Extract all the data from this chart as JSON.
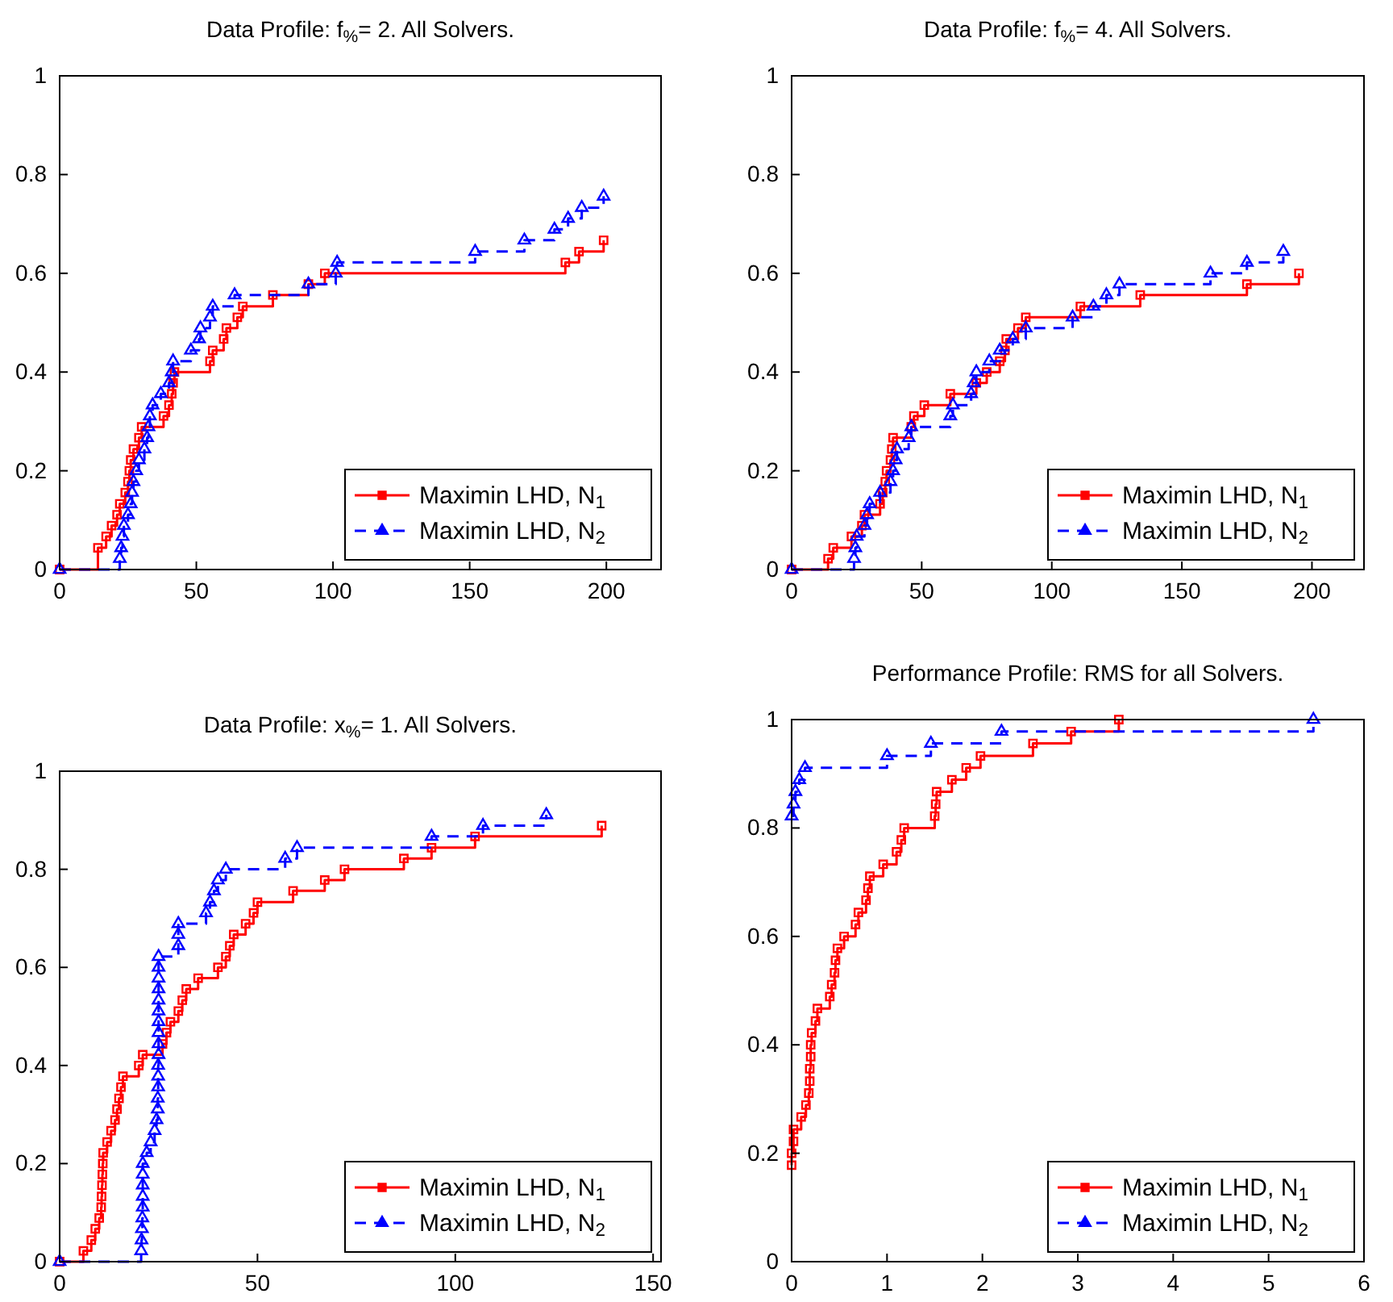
{
  "chart_data": [
    {
      "type": "step",
      "title": "Data Profile: f$_{%}$= 2.  All Solvers.",
      "xlim": [
        0,
        220
      ],
      "xticks": [
        0,
        50,
        100,
        150,
        200
      ],
      "ylim": [
        0,
        1
      ],
      "yticks": [
        0,
        0.2,
        0.4,
        0.6,
        0.8,
        1
      ],
      "grid": false,
      "legend": "bottom right",
      "series": [
        {
          "name": "Maximin LHD, N$_{1}$",
          "color": "#ff0000",
          "marker": "square",
          "line_style": "solid",
          "x": [
            0,
            14,
            17,
            19,
            21,
            22,
            24,
            25,
            25.5,
            26,
            27,
            29,
            30,
            38,
            40,
            41,
            41.5,
            42,
            55,
            56,
            60,
            61,
            65,
            67,
            78,
            91,
            97,
            185,
            190,
            199
          ],
          "values": [
            0,
            0.044,
            0.067,
            0.089,
            0.111,
            0.133,
            0.156,
            0.178,
            0.2,
            0.222,
            0.244,
            0.267,
            0.289,
            0.311,
            0.333,
            0.356,
            0.378,
            0.4,
            0.422,
            0.444,
            0.467,
            0.489,
            0.511,
            0.533,
            0.556,
            0.578,
            0.6,
            0.622,
            0.644,
            0.667
          ]
        },
        {
          "name": "Maximin LHD, N$_{2}$",
          "color": "#0000ff",
          "marker": "triangle",
          "line_style": "dashed",
          "x": [
            0,
            22,
            22.5,
            23,
            23.5,
            25,
            26,
            26.5,
            27,
            28,
            29,
            31,
            32,
            32.5,
            33,
            34,
            37,
            40,
            41,
            41.5,
            48,
            51,
            51.5,
            55,
            56,
            64,
            91,
            101,
            101.5,
            152,
            170,
            181,
            186,
            191,
            199
          ],
          "values": [
            0,
            0.022,
            0.044,
            0.067,
            0.089,
            0.111,
            0.133,
            0.156,
            0.178,
            0.2,
            0.222,
            0.244,
            0.267,
            0.289,
            0.311,
            0.333,
            0.356,
            0.378,
            0.4,
            0.422,
            0.444,
            0.467,
            0.489,
            0.511,
            0.533,
            0.556,
            0.578,
            0.6,
            0.622,
            0.644,
            0.667,
            0.689,
            0.711,
            0.733,
            0.756
          ]
        }
      ]
    },
    {
      "type": "step",
      "title": "Data Profile: f$_{%}$= 4.  All Solvers.",
      "xlim": [
        0,
        220
      ],
      "xticks": [
        0,
        50,
        100,
        150,
        200
      ],
      "ylim": [
        0,
        1
      ],
      "yticks": [
        0,
        0.2,
        0.4,
        0.6,
        0.8,
        1
      ],
      "grid": false,
      "legend": "bottom right",
      "series": [
        {
          "name": "Maximin LHD, N$_{1}$",
          "color": "#ff0000",
          "marker": "square",
          "line_style": "solid",
          "x": [
            0,
            14,
            16,
            23,
            27,
            28,
            34,
            35,
            36,
            36.5,
            38,
            38.5,
            39,
            46,
            47,
            51,
            61,
            71,
            75,
            80,
            82,
            82.5,
            87,
            90,
            111,
            134,
            175,
            195
          ],
          "values": [
            0,
            0.022,
            0.044,
            0.067,
            0.089,
            0.111,
            0.133,
            0.156,
            0.178,
            0.2,
            0.222,
            0.244,
            0.267,
            0.289,
            0.311,
            0.333,
            0.356,
            0.378,
            0.4,
            0.422,
            0.444,
            0.467,
            0.489,
            0.511,
            0.533,
            0.556,
            0.578,
            0.6
          ]
        },
        {
          "name": "Maximin LHD, N$_{2}$",
          "color": "#0000ff",
          "marker": "triangle",
          "line_style": "dashed",
          "x": [
            0,
            24,
            24.5,
            25,
            28,
            29,
            30,
            34,
            38,
            39,
            40,
            40.5,
            45,
            46,
            61,
            62,
            69,
            70,
            71,
            76,
            80,
            85,
            90,
            108,
            116,
            121,
            126,
            161,
            175,
            189
          ],
          "values": [
            0,
            0.022,
            0.044,
            0.067,
            0.089,
            0.111,
            0.133,
            0.156,
            0.178,
            0.2,
            0.222,
            0.244,
            0.267,
            0.289,
            0.311,
            0.333,
            0.356,
            0.378,
            0.4,
            0.422,
            0.444,
            0.467,
            0.489,
            0.511,
            0.533,
            0.556,
            0.578,
            0.6,
            0.622,
            0.644
          ]
        }
      ]
    },
    {
      "type": "step",
      "title": "Data Profile: x$_{%}$= 1.  All Solvers.",
      "xlim": [
        0,
        152
      ],
      "xticks": [
        0,
        50,
        100,
        150
      ],
      "ylim": [
        0,
        1
      ],
      "yticks": [
        0,
        0.2,
        0.4,
        0.6,
        0.8,
        1
      ],
      "grid": false,
      "legend": "bottom right",
      "series": [
        {
          "name": "Maximin LHD, N$_{1}$",
          "color": "#ff0000",
          "marker": "square",
          "line_style": "solid",
          "x": [
            0,
            6,
            8,
            9,
            10,
            10.5,
            10.6,
            10.7,
            10.8,
            10.9,
            11,
            12,
            13,
            14,
            14.5,
            15,
            15.5,
            16,
            20,
            21,
            26,
            27,
            28,
            30,
            31,
            32,
            35,
            40,
            42,
            43,
            44,
            47,
            49,
            50,
            59,
            67,
            72,
            87,
            94,
            105,
            137
          ],
          "values": [
            0,
            0.022,
            0.044,
            0.067,
            0.089,
            0.111,
            0.133,
            0.156,
            0.178,
            0.2,
            0.222,
            0.244,
            0.267,
            0.289,
            0.311,
            0.333,
            0.356,
            0.378,
            0.4,
            0.422,
            0.444,
            0.467,
            0.489,
            0.511,
            0.533,
            0.556,
            0.578,
            0.6,
            0.622,
            0.644,
            0.667,
            0.689,
            0.711,
            0.733,
            0.756,
            0.778,
            0.8,
            0.822,
            0.844,
            0.867,
            0.889
          ]
        },
        {
          "name": "Maximin LHD, N$_{2}$",
          "color": "#0000ff",
          "marker": "triangle",
          "line_style": "dashed",
          "x": [
            0,
            20.6,
            20.7,
            20.8,
            20.9,
            21,
            21,
            21,
            21,
            21,
            22,
            23,
            24,
            24.5,
            24.8,
            24.8,
            24.9,
            24.9,
            24.9,
            25,
            25,
            25,
            25,
            25,
            25,
            25,
            25,
            25,
            25,
            30,
            30,
            30,
            37,
            38,
            39,
            40,
            42,
            57,
            60,
            94,
            107,
            123
          ],
          "values": [
            0,
            0.022,
            0.044,
            0.067,
            0.089,
            0.111,
            0.133,
            0.156,
            0.178,
            0.2,
            0.222,
            0.244,
            0.267,
            0.289,
            0.311,
            0.333,
            0.356,
            0.378,
            0.4,
            0.422,
            0.444,
            0.467,
            0.489,
            0.511,
            0.533,
            0.556,
            0.578,
            0.6,
            0.622,
            0.644,
            0.667,
            0.689,
            0.711,
            0.733,
            0.756,
            0.778,
            0.8,
            0.822,
            0.844,
            0.867,
            0.889,
            0.911
          ]
        }
      ]
    },
    {
      "type": "step",
      "title": "Performance Profile: RMS for all Solvers.",
      "xlim": [
        0,
        6
      ],
      "xticks": [
        0,
        1,
        2,
        3,
        4,
        5,
        6
      ],
      "ylim": [
        0,
        1
      ],
      "yticks": [
        0,
        0.2,
        0.4,
        0.6,
        0.8,
        1
      ],
      "grid": false,
      "legend": "bottom right",
      "series": [
        {
          "name": "Maximin LHD, N$_{1}$",
          "color": "#ff0000",
          "marker": "square",
          "line_style": "solid",
          "x": [
            0,
            0,
            0.02,
            0.02,
            0.1,
            0.15,
            0.18,
            0.19,
            0.19,
            0.2,
            0.2,
            0.21,
            0.25,
            0.27,
            0.4,
            0.42,
            0.45,
            0.46,
            0.48,
            0.55,
            0.67,
            0.7,
            0.78,
            0.8,
            0.82,
            0.96,
            1.1,
            1.15,
            1.18,
            1.5,
            1.51,
            1.52,
            1.68,
            1.83,
            1.98,
            2.53,
            2.93,
            3.43
          ],
          "values": [
            0.178,
            0.2,
            0.222,
            0.244,
            0.267,
            0.289,
            0.311,
            0.333,
            0.356,
            0.378,
            0.4,
            0.422,
            0.444,
            0.467,
            0.489,
            0.511,
            0.533,
            0.556,
            0.578,
            0.6,
            0.622,
            0.644,
            0.667,
            0.689,
            0.711,
            0.733,
            0.756,
            0.778,
            0.8,
            0.822,
            0.844,
            0.867,
            0.889,
            0.911,
            0.933,
            0.956,
            0.978,
            1.0
          ]
        },
        {
          "name": "Maximin LHD, N$_{2}$",
          "color": "#0000ff",
          "marker": "triangle",
          "line_style": "dashed",
          "x": [
            0,
            0.02,
            0.04,
            0.08,
            0.14,
            1.0,
            1.46,
            2.2,
            5.47
          ],
          "values": [
            0.822,
            0.844,
            0.867,
            0.889,
            0.911,
            0.933,
            0.956,
            0.978,
            1.0
          ]
        }
      ]
    }
  ]
}
